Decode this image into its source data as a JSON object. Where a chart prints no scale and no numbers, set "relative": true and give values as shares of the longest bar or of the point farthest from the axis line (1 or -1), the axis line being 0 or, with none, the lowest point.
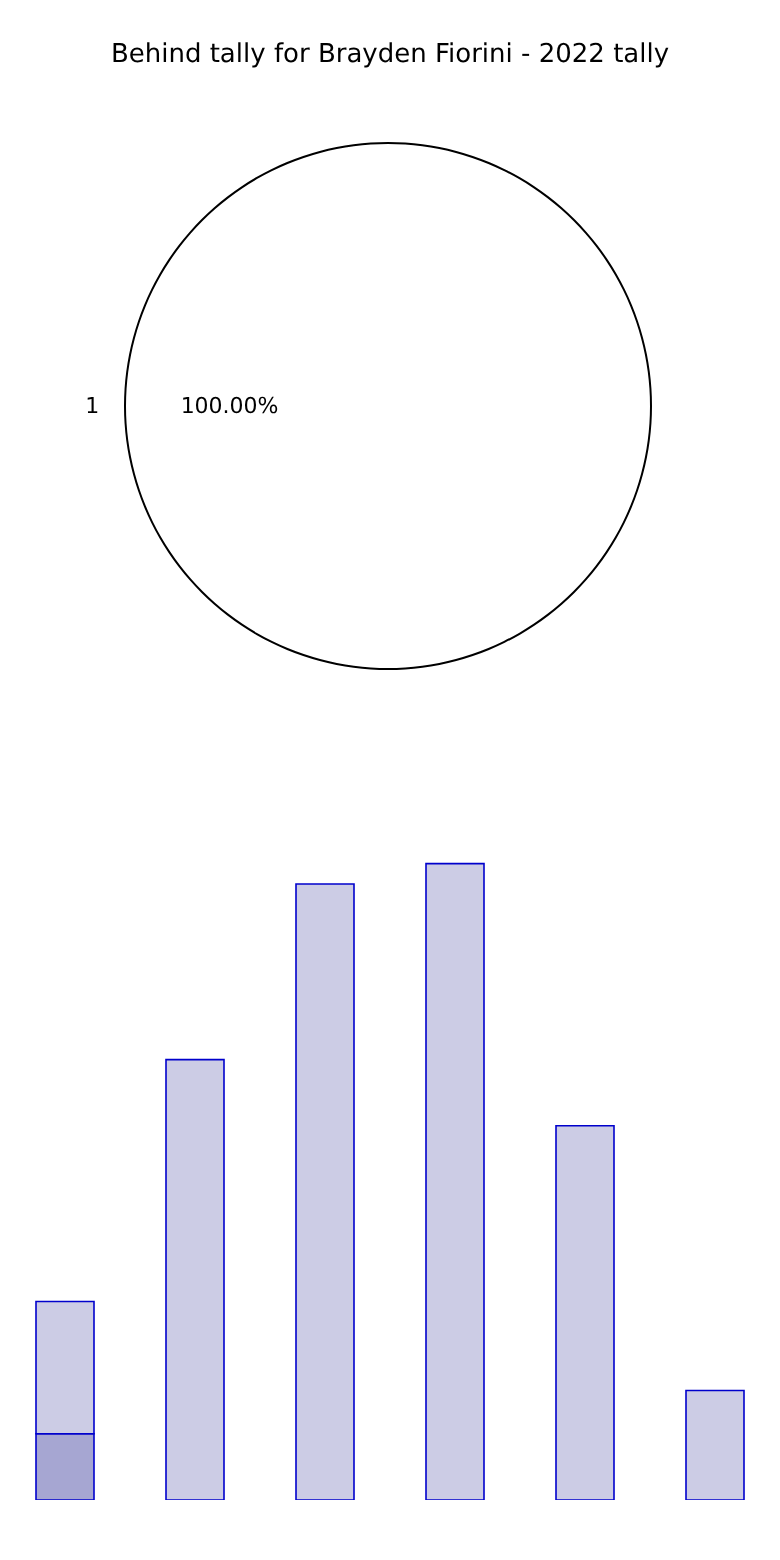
{
  "chart_data": [
    {
      "type": "pie",
      "title": "Behind tally for Brayden Fiorini - 2022 tally",
      "categories": [
        "1"
      ],
      "values": [
        100
      ],
      "colors": [
        "#ffffff"
      ],
      "value_labels": [
        "100.00%"
      ]
    },
    {
      "type": "bar",
      "relative": true,
      "stacked": true,
      "categories": [
        null,
        null,
        null,
        null,
        null,
        null
      ],
      "series": [
        {
          "color": "#a6a6d2",
          "values": [
            0.104,
            0,
            0,
            0,
            0,
            0
          ]
        },
        {
          "color": "#ccccE5",
          "values": [
            0.208,
            0.692,
            0.968,
            1,
            0.588,
            0.172
          ]
        }
      ]
    }
  ]
}
